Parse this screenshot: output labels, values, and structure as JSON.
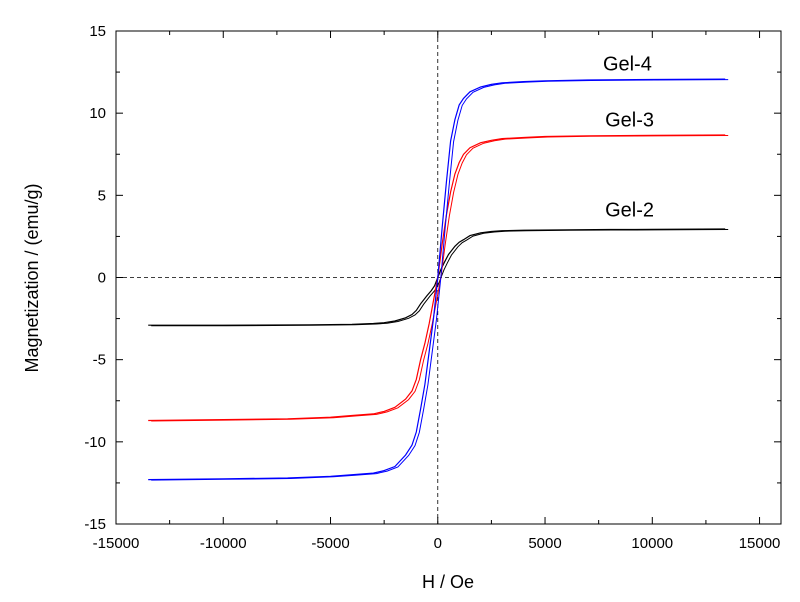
{
  "chart_data": {
    "type": "line",
    "xlabel": "H / Oe",
    "ylabel": "Magnetization / (emu/g)",
    "xlim": [
      -15000,
      16000
    ],
    "ylim": [
      -15,
      15
    ],
    "x_ticks": [
      -15000,
      -10000,
      -5000,
      0,
      5000,
      10000,
      15000
    ],
    "y_ticks": [
      -15,
      -10,
      -5,
      0,
      5,
      10,
      15
    ],
    "x_tick_labels": [
      "-15000",
      "-10000",
      "-5000",
      "0",
      "5000",
      "10000",
      "15000"
    ],
    "y_tick_labels": [
      "-15",
      "-10",
      "-5",
      "0",
      "5",
      "10",
      "15"
    ],
    "grid": false,
    "zero_lines": "dashed",
    "series": [
      {
        "name": "Gel-2",
        "color": "#000000",
        "label_at": [
          7800,
          3.7
        ],
        "x": [
          -13500,
          -10000,
          -6000,
          -4000,
          -3000,
          -2500,
          -2000,
          -1500,
          -1200,
          -1000,
          -800,
          -500,
          -300,
          -150,
          0,
          150,
          300,
          500,
          800,
          1000,
          1200,
          1500,
          2000,
          2500,
          3000,
          4000,
          6000,
          8000,
          10000,
          13400
        ],
        "y": [
          -2.9,
          -2.9,
          -2.88,
          -2.85,
          -2.8,
          -2.75,
          -2.65,
          -2.45,
          -2.25,
          -2.0,
          -1.6,
          -1.1,
          -0.8,
          -0.5,
          0.0,
          0.5,
          0.9,
          1.4,
          1.9,
          2.15,
          2.3,
          2.55,
          2.72,
          2.8,
          2.85,
          2.88,
          2.9,
          2.92,
          2.93,
          2.95
        ]
      },
      {
        "name": "Gel-3",
        "color": "#ff0000",
        "label_at": [
          7800,
          9.2
        ],
        "x": [
          -13500,
          -10000,
          -7000,
          -5000,
          -4000,
          -3000,
          -2500,
          -2000,
          -1500,
          -1200,
          -1000,
          -800,
          -600,
          -400,
          -200,
          0,
          200,
          400,
          600,
          800,
          1000,
          1200,
          1500,
          2000,
          2500,
          3000,
          4000,
          5000,
          7000,
          10000,
          13400
        ],
        "y": [
          -8.7,
          -8.65,
          -8.6,
          -8.5,
          -8.4,
          -8.3,
          -8.15,
          -7.9,
          -7.4,
          -6.9,
          -6.2,
          -5.0,
          -4.0,
          -2.8,
          -1.4,
          0.0,
          2.0,
          3.8,
          5.2,
          6.3,
          7.0,
          7.5,
          7.9,
          8.2,
          8.35,
          8.45,
          8.52,
          8.58,
          8.62,
          8.65,
          8.67
        ]
      },
      {
        "name": "Gel-4",
        "color": "#0000ff",
        "label_at": [
          7700,
          12.6
        ],
        "x": [
          -13500,
          -10000,
          -7000,
          -5000,
          -4000,
          -3000,
          -2500,
          -2000,
          -1500,
          -1200,
          -1000,
          -800,
          -600,
          -400,
          -200,
          0,
          200,
          400,
          600,
          800,
          1000,
          1200,
          1500,
          2000,
          2500,
          3000,
          4000,
          5000,
          7000,
          10000,
          13400
        ],
        "y": [
          -12.3,
          -12.25,
          -12.2,
          -12.1,
          -12.0,
          -11.9,
          -11.75,
          -11.5,
          -10.8,
          -10.2,
          -9.4,
          -8.0,
          -6.5,
          -4.5,
          -2.5,
          0.0,
          3.0,
          5.8,
          8.3,
          9.6,
          10.5,
          10.9,
          11.3,
          11.6,
          11.75,
          11.85,
          11.92,
          11.97,
          12.02,
          12.05,
          12.07
        ]
      }
    ]
  }
}
